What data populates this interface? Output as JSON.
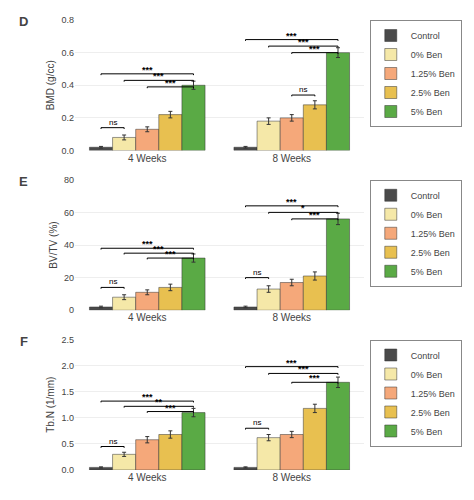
{
  "chart_data": [
    {
      "type": "bar",
      "title": "D",
      "ylabel": "BMD (g/cc)",
      "categories": [
        "4 Weeks",
        "8 Weeks"
      ],
      "series": [
        {
          "name": "Control",
          "color": "#4a4a4a",
          "values": [
            0.02,
            0.02
          ],
          "errors": [
            0.005,
            0.005
          ]
        },
        {
          "name": "0% Ben",
          "color": "#F5E8A8",
          "values": [
            0.08,
            0.18
          ],
          "errors": [
            0.015,
            0.02
          ]
        },
        {
          "name": "1.25% Ben",
          "color": "#F5A87A",
          "values": [
            0.13,
            0.2
          ],
          "errors": [
            0.015,
            0.02
          ]
        },
        {
          "name": "2.5% Ben",
          "color": "#E8C050",
          "values": [
            0.22,
            0.28
          ],
          "errors": [
            0.02,
            0.025
          ]
        },
        {
          "name": "5% Ben",
          "color": "#5AAA45",
          "values": [
            0.4,
            0.6
          ],
          "errors": [
            0.025,
            0.03
          ]
        }
      ],
      "ylim": [
        0,
        0.8
      ],
      "yticks": [
        {
          "value": 0.0,
          "label": "0.0"
        },
        0.2,
        0.4,
        0.6,
        0.8
      ],
      "grid": true,
      "legend": "right",
      "annotations": [
        {
          "group": "4 Weeks",
          "from": "Control",
          "to": "5% Ben",
          "label": "***",
          "y": 0.47
        },
        {
          "group": "4 Weeks",
          "from": "0% Ben",
          "to": "5% Ben",
          "label": "***",
          "y": 0.43
        },
        {
          "group": "4 Weeks",
          "from": "Control",
          "to": "0% Ben",
          "label": "ns",
          "y": 0.14
        },
        {
          "group": "4 Weeks",
          "from": "1.25% Ben",
          "to": "5% Ben",
          "label": "***",
          "y": 0.39
        },
        {
          "group": "8 Weeks",
          "from": "Control",
          "to": "5% Ben",
          "label": "***",
          "y": 0.68
        },
        {
          "group": "8 Weeks",
          "from": "0% Ben",
          "to": "5% Ben",
          "label": "***",
          "y": 0.64
        },
        {
          "group": "8 Weeks",
          "from": "1.25% Ben",
          "to": "2.5% Ben",
          "label": "ns",
          "y": 0.34
        },
        {
          "group": "8 Weeks",
          "from": "1.25% Ben",
          "to": "5% Ben",
          "label": "***",
          "y": 0.6
        }
      ]
    },
    {
      "type": "bar",
      "title": "E",
      "ylabel": "BV/TV (%)",
      "categories": [
        "4 Weeks",
        "8 Weeks"
      ],
      "series": [
        {
          "name": "Control",
          "color": "#4a4a4a",
          "values": [
            2,
            2
          ],
          "errors": [
            0.5,
            0.5
          ]
        },
        {
          "name": "0% Ben",
          "color": "#F5E8A8",
          "values": [
            8,
            13
          ],
          "errors": [
            1.5,
            2.0
          ]
        },
        {
          "name": "1.25% Ben",
          "color": "#F5A87A",
          "values": [
            11,
            17
          ],
          "errors": [
            1.5,
            2.0
          ]
        },
        {
          "name": "2.5% Ben",
          "color": "#E8C050",
          "values": [
            14,
            21
          ],
          "errors": [
            2.0,
            2.5
          ]
        },
        {
          "name": "5% Ben",
          "color": "#5AAA45",
          "values": [
            32,
            56
          ],
          "errors": [
            2.5,
            3.5
          ]
        }
      ],
      "ylim": [
        0,
        80
      ],
      "yticks": [
        0,
        20,
        40,
        60,
        80
      ],
      "grid": true,
      "legend": "right",
      "annotations": [
        {
          "group": "4 Weeks",
          "from": "Control",
          "to": "5% Ben",
          "label": "***",
          "y": 38
        },
        {
          "group": "4 Weeks",
          "from": "Control",
          "to": "0% Ben",
          "label": "ns",
          "y": 14
        },
        {
          "group": "4 Weeks",
          "from": "0% Ben",
          "to": "5% Ben",
          "label": "***",
          "y": 35
        },
        {
          "group": "4 Weeks",
          "from": "1.25% Ben",
          "to": "5% Ben",
          "label": "***",
          "y": 32
        },
        {
          "group": "8 Weeks",
          "from": "Control",
          "to": "5% Ben",
          "label": "***",
          "y": 64
        },
        {
          "group": "8 Weeks",
          "from": "0% Ben",
          "to": "5% Ben",
          "label": "*",
          "y": 60
        },
        {
          "group": "8 Weeks",
          "from": "Control",
          "to": "0% Ben",
          "label": "ns",
          "y": 20
        },
        {
          "group": "8 Weeks",
          "from": "1.25% Ben",
          "to": "5% Ben",
          "label": "***",
          "y": 56
        }
      ]
    },
    {
      "type": "bar",
      "title": "F",
      "ylabel": "Tb.N (1/mm)",
      "categories": [
        "4 Weeks",
        "8 Weeks"
      ],
      "series": [
        {
          "name": "Control",
          "color": "#4a4a4a",
          "values": [
            0.05,
            0.05
          ],
          "errors": [
            0.01,
            0.01
          ]
        },
        {
          "name": "0% Ben",
          "color": "#F5E8A8",
          "values": [
            0.3,
            0.62
          ],
          "errors": [
            0.04,
            0.06
          ]
        },
        {
          "name": "1.25% Ben",
          "color": "#F5A87A",
          "values": [
            0.58,
            0.68
          ],
          "errors": [
            0.06,
            0.06
          ]
        },
        {
          "name": "2.5% Ben",
          "color": "#E8C050",
          "values": [
            0.68,
            1.18
          ],
          "errors": [
            0.07,
            0.08
          ]
        },
        {
          "name": "5% Ben",
          "color": "#5AAA45",
          "values": [
            1.1,
            1.68
          ],
          "errors": [
            0.08,
            0.1
          ]
        }
      ],
      "ylim": [
        0,
        2.5
      ],
      "yticks": [
        {
          "value": 0.0,
          "label": "0.0"
        },
        0.5,
        {
          "value": 1.0,
          "label": "1.0"
        },
        1.5,
        {
          "value": 2.0,
          "label": "2.0"
        },
        2.5
      ],
      "grid": true,
      "legend": "right",
      "annotations": [
        {
          "group": "4 Weeks",
          "from": "Control",
          "to": "5% Ben",
          "label": "***",
          "y": 1.32
        },
        {
          "group": "4 Weeks",
          "from": "0% Ben",
          "to": "5% Ben",
          "label": "**",
          "y": 1.22
        },
        {
          "group": "4 Weeks",
          "from": "Control",
          "to": "0% Ben",
          "label": "ns",
          "y": 0.45
        },
        {
          "group": "4 Weeks",
          "from": "1.25% Ben",
          "to": "5% Ben",
          "label": "***",
          "y": 1.12
        },
        {
          "group": "8 Weeks",
          "from": "Control",
          "to": "5% Ben",
          "label": "***",
          "y": 1.98
        },
        {
          "group": "8 Weeks",
          "from": "0% Ben",
          "to": "5% Ben",
          "label": "***",
          "y": 1.85
        },
        {
          "group": "8 Weeks",
          "from": "Control",
          "to": "0% Ben",
          "label": "ns",
          "y": 0.8
        },
        {
          "group": "8 Weeks",
          "from": "1.25% Ben",
          "to": "5% Ben",
          "label": "***",
          "y": 1.68
        }
      ]
    }
  ]
}
